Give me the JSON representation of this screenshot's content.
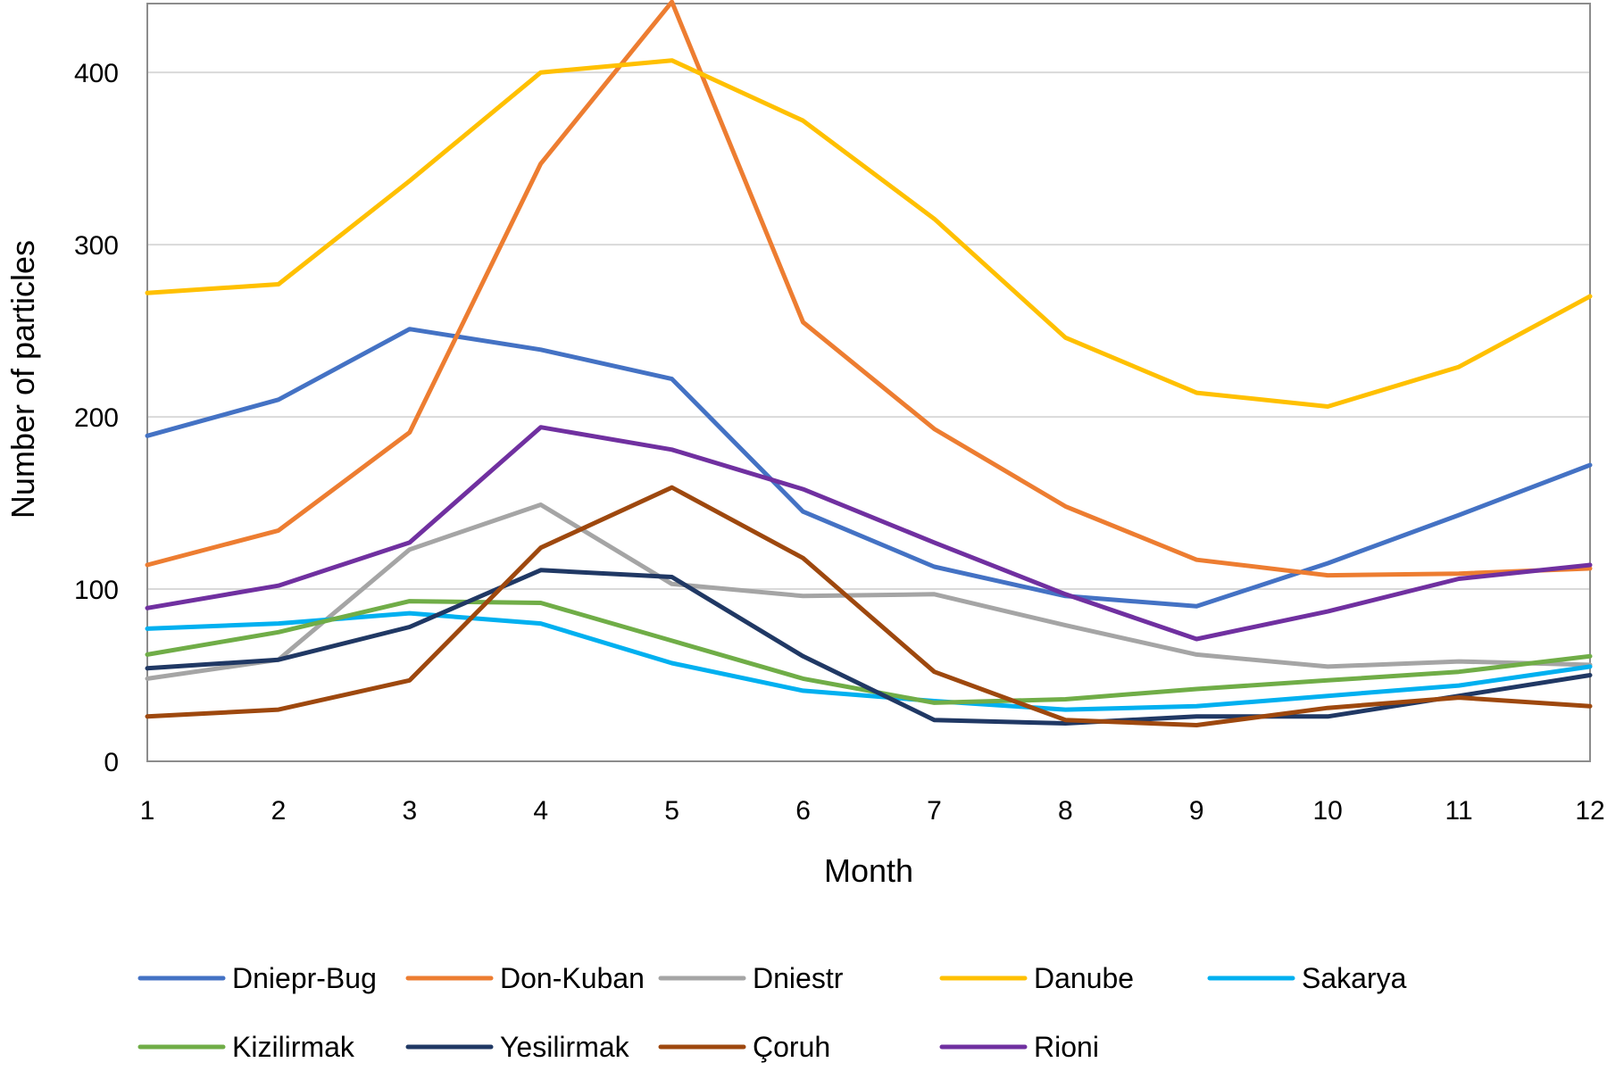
{
  "chart_data": {
    "type": "line",
    "title": "",
    "xlabel": "Month",
    "ylabel": "Number of particles",
    "ylim": [
      0,
      440
    ],
    "yticks": [
      0,
      100,
      200,
      300,
      400
    ],
    "grid": true,
    "legend_position": "bottom",
    "categories": [
      "1",
      "2",
      "3",
      "4",
      "5",
      "6",
      "7",
      "8",
      "9",
      "10",
      "11",
      "12"
    ],
    "series": [
      {
        "name": "Dniepr-Bug",
        "color": "#4472C4",
        "values": [
          189,
          210,
          251,
          239,
          222,
          145,
          113,
          96,
          90,
          115,
          143,
          172
        ]
      },
      {
        "name": "Don-Kuban",
        "color": "#ED7D31",
        "values": [
          114,
          134,
          191,
          347,
          441,
          255,
          193,
          148,
          117,
          108,
          109,
          112
        ]
      },
      {
        "name": "Dniestr",
        "color": "#A5A5A5",
        "values": [
          48,
          59,
          123,
          149,
          103,
          96,
          97,
          79,
          62,
          55,
          58,
          56
        ]
      },
      {
        "name": "Danube",
        "color": "#FFC000",
        "values": [
          272,
          277,
          337,
          400,
          407,
          372,
          315,
          246,
          214,
          206,
          229,
          270
        ]
      },
      {
        "name": "Sakarya",
        "color": "#00B0F0",
        "values": [
          77,
          80,
          86,
          80,
          57,
          41,
          35,
          30,
          32,
          38,
          44,
          55
        ]
      },
      {
        "name": "Kizilirmak",
        "color": "#70AD47",
        "values": [
          62,
          75,
          93,
          92,
          70,
          48,
          34,
          36,
          42,
          47,
          52,
          61
        ]
      },
      {
        "name": "Yesilirmak",
        "color": "#203864",
        "values": [
          54,
          59,
          78,
          111,
          107,
          61,
          24,
          22,
          26,
          26,
          38,
          50
        ]
      },
      {
        "name": "Çoruh",
        "color": "#9E480E",
        "values": [
          26,
          30,
          47,
          124,
          159,
          118,
          52,
          24,
          21,
          31,
          37,
          32
        ]
      },
      {
        "name": "Rioni",
        "color": "#7030A0",
        "values": [
          89,
          102,
          127,
          194,
          181,
          158,
          127,
          97,
          71,
          87,
          106,
          114
        ]
      }
    ]
  }
}
